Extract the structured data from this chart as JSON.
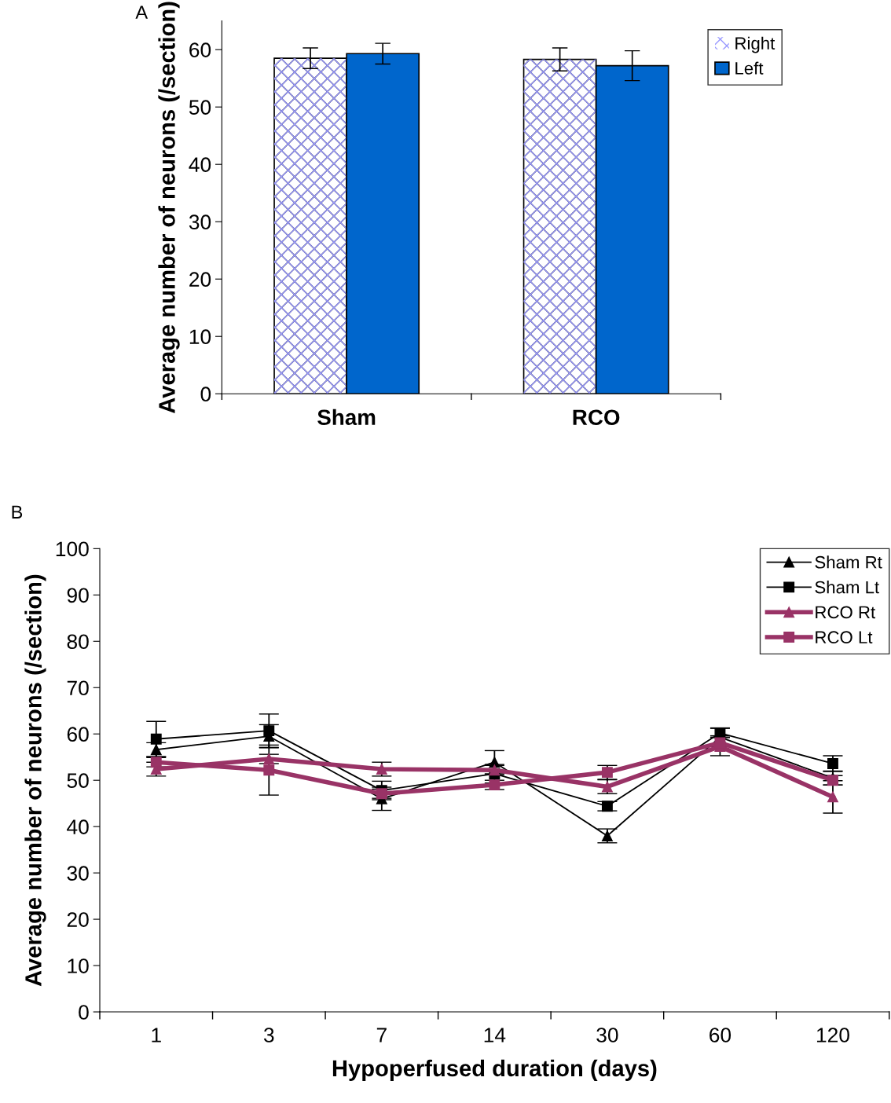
{
  "chart_data": [
    {
      "type": "bar",
      "categories": [
        "Sham",
        "RCO"
      ],
      "ylabel": "Average number of neurons (/section)",
      "annotations": [
        "A"
      ],
      "series": [
        {
          "name": "Right",
          "color": "#9999ff",
          "values": [
            58.5,
            58.3
          ],
          "errors": [
            1.8,
            2.0
          ]
        },
        {
          "name": "Left",
          "color": "#0066cc",
          "values": [
            59.3,
            57.2
          ],
          "errors": [
            1.8,
            2.6
          ]
        }
      ],
      "ylim": [
        0,
        65
      ],
      "yticks": [
        0,
        10,
        20,
        30,
        40,
        50,
        60
      ],
      "grid": false,
      "legend": "top right"
    },
    {
      "type": "line",
      "categories": [
        "1",
        "3",
        "7",
        "14",
        "30",
        "60",
        "120"
      ],
      "xlabel": "Hypoperfused duration (days)",
      "ylabel": "Average number of neurons (/section)",
      "annotations": [
        "B"
      ],
      "series": [
        {
          "name": "Sham Rt",
          "color": "#000000",
          "marker": "triangle",
          "values": [
            56.6,
            59.5,
            46.0,
            53.9,
            38.0,
            59.3,
            50.5
          ],
          "errors": [
            1.5,
            2.5,
            2.5,
            2.5,
            1.5,
            2.0,
            1.5
          ]
        },
        {
          "name": "Sham Lt",
          "color": "#000000",
          "marker": "square",
          "values": [
            58.9,
            60.7,
            47.8,
            51.4,
            44.4,
            60.2,
            53.6
          ],
          "errors": [
            3.8,
            3.6,
            2.0,
            2.0,
            1.0,
            1.0,
            1.7
          ]
        },
        {
          "name": "RCO Rt",
          "color": "#993366",
          "marker": "triangle",
          "values": [
            52.4,
            54.6,
            52.4,
            52.2,
            48.6,
            57.3,
            46.4
          ],
          "errors": [
            1.5,
            1.0,
            1.5,
            1.0,
            1.5,
            2.0,
            3.5
          ]
        },
        {
          "name": "RCO Lt",
          "color": "#993366",
          "marker": "square",
          "values": [
            53.9,
            52.2,
            47.1,
            49.0,
            51.7,
            58.1,
            50.0
          ],
          "errors": [
            1.0,
            5.4,
            1.0,
            1.0,
            1.5,
            1.5,
            1.0
          ]
        }
      ],
      "ylim": [
        0,
        100
      ],
      "yticks": [
        0,
        10,
        20,
        30,
        40,
        50,
        60,
        70,
        80,
        90,
        100
      ],
      "grid": false,
      "legend": "top right",
      "line_style": "solid"
    }
  ]
}
